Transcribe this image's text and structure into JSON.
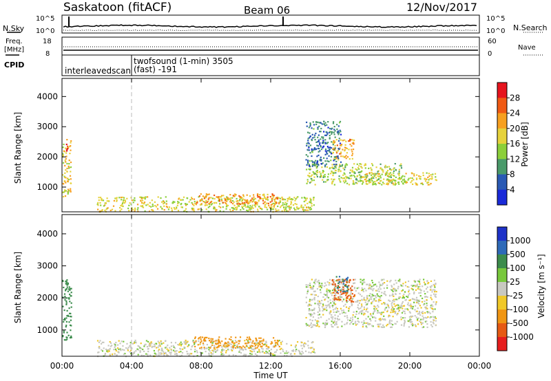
{
  "header": {
    "station": "Saskatoon (fitACF)",
    "beam": "Beam 06",
    "date": "12/Nov/2017"
  },
  "left_labels": {
    "nsky": "N.Sky",
    "freq": "Freq.",
    "mhz": "[MHz]",
    "cpid": "CPID"
  },
  "right_labels": {
    "nsearch": "N.Search",
    "nave": "Nave"
  },
  "top_axes": {
    "nsky_ticks": [
      "10^5",
      "10^0"
    ],
    "nsearch_ticks": [
      "10^5",
      "10^0"
    ],
    "freq_ticks": [
      "18",
      "8"
    ],
    "nave_ticks": [
      "60",
      "0"
    ]
  },
  "cpid": {
    "scan1": "interleavedscan",
    "scan2_line1": "twofsound (1-min) 3505",
    "scan2_line2": "(fast) -191"
  },
  "panels": {
    "ylabel": "Slant Range [km]",
    "xlabel": "Time UT",
    "yticks": [
      "4000",
      "3000",
      "2000",
      "1000"
    ],
    "xticks": [
      "00:00",
      "04:00",
      "08:00",
      "12:00",
      "16:00",
      "20:00",
      "00:00"
    ]
  },
  "colorbars": {
    "power_label": "Power [dB]",
    "power_ticks": [
      "28",
      "24",
      "20",
      "16",
      "12",
      "8",
      "4"
    ],
    "power_colors": [
      "#e6141e",
      "#f05a14",
      "#f7a020",
      "#e6d23c",
      "#8ccf3a",
      "#4a9a6a",
      "#2a5ab4",
      "#1a2ad8"
    ],
    "velocity_label": "Velocity [m s⁻¹]",
    "velocity_ticks": [
      "1000",
      "500",
      "100",
      "25",
      "-25",
      "-100",
      "-500",
      "-1000"
    ],
    "velocity_colors": [
      "#1e32c8",
      "#2e6ab8",
      "#3c8c4c",
      "#78c83c",
      "#c8c8c0",
      "#f0c828",
      "#f09614",
      "#e65a14",
      "#e61e1e"
    ]
  },
  "chart_data": [
    {
      "type": "heatmap",
      "title": "Power",
      "xlabel": "Time UT",
      "ylabel": "Slant Range [km]",
      "xlim": [
        0,
        24
      ],
      "ylim": [
        180,
        4600
      ],
      "colorbar": "Power [dB]",
      "clim": [
        0,
        30
      ],
      "blobs": [
        {
          "t": [
            0.0,
            0.5
          ],
          "r": [
            700,
            2600
          ],
          "level": 18
        },
        {
          "t": [
            0.2,
            0.4
          ],
          "r": [
            2200,
            2500
          ],
          "level": 28
        },
        {
          "t": [
            2.0,
            14.5
          ],
          "r": [
            200,
            700
          ],
          "level": 16
        },
        {
          "t": [
            7.5,
            12.5
          ],
          "r": [
            450,
            800
          ],
          "level": 22
        },
        {
          "t": [
            14.0,
            19.5
          ],
          "r": [
            1100,
            1800
          ],
          "level": 14
        },
        {
          "t": [
            15.5,
            16.8
          ],
          "r": [
            1900,
            2600
          ],
          "level": 20
        },
        {
          "t": [
            17.0,
            21.5
          ],
          "r": [
            1100,
            1500
          ],
          "level": 16
        },
        {
          "t": [
            14.0,
            16.0
          ],
          "r": [
            1700,
            3200
          ],
          "level": 6
        }
      ]
    },
    {
      "type": "heatmap",
      "title": "Velocity",
      "xlabel": "Time UT",
      "ylabel": "Slant Range [km]",
      "xlim": [
        0,
        24
      ],
      "ylim": [
        180,
        4600
      ],
      "colorbar": "Velocity [m s⁻¹]",
      "clim": [
        -1000,
        1000
      ],
      "blobs": [
        {
          "t": [
            0.0,
            0.5
          ],
          "r": [
            700,
            2600
          ],
          "level": 100
        },
        {
          "t": [
            2.0,
            14.5
          ],
          "r": [
            200,
            700
          ],
          "level": 0
        },
        {
          "t": [
            7.5,
            12.5
          ],
          "r": [
            450,
            800
          ],
          "level": -150
        },
        {
          "t": [
            14.0,
            21.5
          ],
          "r": [
            1100,
            2600
          ],
          "level": 0
        },
        {
          "t": [
            15.5,
            16.8
          ],
          "r": [
            1900,
            2600
          ],
          "level": -500
        },
        {
          "t": [
            15.7,
            16.4
          ],
          "r": [
            2200,
            2700
          ],
          "level": 300
        }
      ]
    }
  ]
}
